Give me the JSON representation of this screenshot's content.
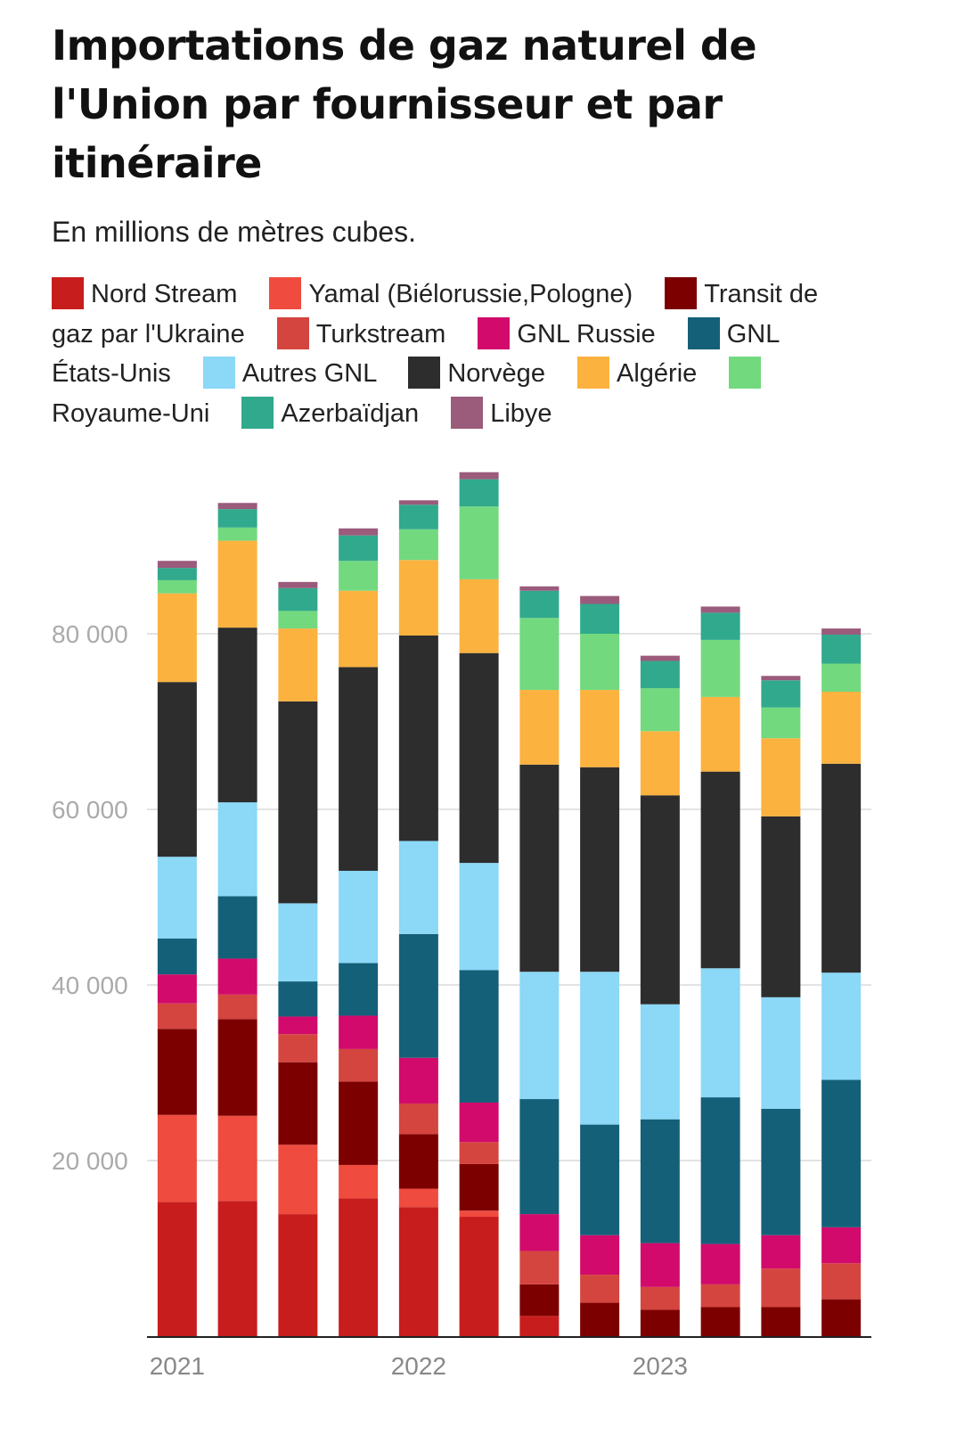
{
  "chart_data": {
    "type": "bar",
    "stacked": true,
    "title": "Importations de gaz naturel de l'Union par fournisseur et par itinéraire",
    "subtitle": "En millions de mètres cubes.",
    "ylim": [
      0,
      98000
    ],
    "yticks": [
      {
        "value": 20000,
        "label": "20 000"
      },
      {
        "value": 40000,
        "label": "40 000"
      },
      {
        "value": 60000,
        "label": "60 000"
      },
      {
        "value": 80000,
        "label": "80 000"
      }
    ],
    "grid": true,
    "legend_position": "top",
    "x_tick_labels": [
      {
        "index": 0,
        "label": "2021"
      },
      {
        "index": 4,
        "label": "2022"
      },
      {
        "index": 8,
        "label": "2023"
      }
    ],
    "categories_count": 12,
    "series": [
      {
        "name": "Nord Stream",
        "color": "#c81d1d",
        "values": [
          15300,
          15400,
          13900,
          15700,
          14700,
          13600,
          2300,
          0,
          0,
          0,
          0,
          0
        ]
      },
      {
        "name": "Yamal (Biélorussie,Pologne)",
        "color": "#ef4b3f",
        "values": [
          9900,
          9700,
          7900,
          3800,
          2100,
          700,
          0,
          0,
          0,
          0,
          0,
          0
        ]
      },
      {
        "name": "Transit de gaz par l'Ukraine",
        "color": "#7d0000",
        "values": [
          9800,
          11000,
          9400,
          9500,
          6200,
          5300,
          3600,
          3800,
          3000,
          3300,
          3300,
          4200
        ]
      },
      {
        "name": "Turkstream",
        "color": "#d4453f",
        "values": [
          2900,
          2800,
          3200,
          3700,
          3500,
          2500,
          3800,
          3200,
          2600,
          2600,
          4400,
          4100
        ]
      },
      {
        "name": "GNL Russie",
        "color": "#d20a6b",
        "values": [
          3300,
          4100,
          2000,
          3800,
          5200,
          4500,
          4200,
          4500,
          5000,
          4600,
          3800,
          4100
        ]
      },
      {
        "name": "GNL États-Unis",
        "color": "#156079",
        "values": [
          4100,
          7100,
          4000,
          6000,
          14100,
          15100,
          13100,
          12600,
          14100,
          16700,
          14400,
          16800
        ]
      },
      {
        "name": "Autres GNL",
        "color": "#8bd8f7",
        "values": [
          9300,
          10700,
          8900,
          10500,
          10600,
          12200,
          14500,
          17400,
          13100,
          14700,
          12700,
          12200
        ]
      },
      {
        "name": "Norvège",
        "color": "#2d2d2d",
        "values": [
          19900,
          19900,
          23000,
          23200,
          23400,
          23900,
          23600,
          23300,
          23800,
          22400,
          20600,
          23800
        ]
      },
      {
        "name": "Algérie",
        "color": "#fcb23f",
        "values": [
          10100,
          9900,
          8300,
          8700,
          8600,
          8400,
          8500,
          8800,
          7300,
          8500,
          8900,
          8200
        ]
      },
      {
        "name": "Royaume-Uni",
        "color": "#72d97f",
        "values": [
          1500,
          1500,
          2000,
          3400,
          3500,
          8300,
          8200,
          6400,
          4900,
          6500,
          3500,
          3200
        ]
      },
      {
        "name": "Azerbaïdjan",
        "color": "#31a98c",
        "values": [
          1400,
          2100,
          2600,
          2900,
          2800,
          3100,
          3100,
          3400,
          3100,
          3100,
          3100,
          3300
        ]
      },
      {
        "name": "Libye",
        "color": "#9b5b7b",
        "values": [
          800,
          700,
          700,
          800,
          500,
          800,
          500,
          900,
          600,
          700,
          500,
          700
        ]
      }
    ]
  }
}
